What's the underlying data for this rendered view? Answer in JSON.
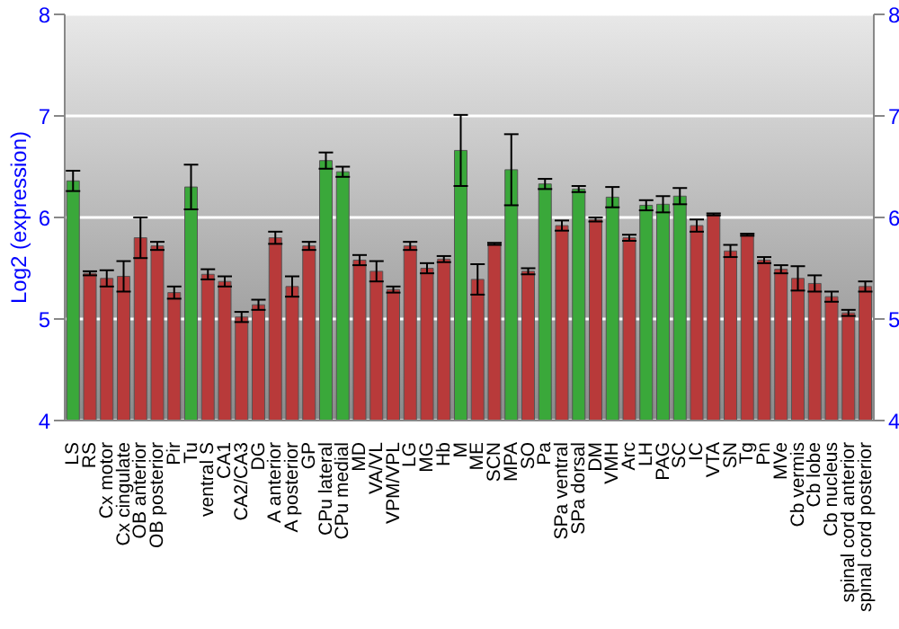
{
  "chart_data": {
    "type": "bar",
    "ylabel": "Log2 (expression)",
    "categories": [
      "LS",
      "RS",
      "Cx motor",
      "Cx cingulate",
      "OB anterior",
      "OB posterior",
      "Pir",
      "Tu",
      "ventral S",
      "CA1",
      "CA2/CA3",
      "DG",
      "A anterior",
      "A posterior",
      "GP",
      "CPu lateral",
      "CPu medial",
      "MD",
      "VA/VL",
      "VPM/VPL",
      "LG",
      "MG",
      "Hb",
      "M",
      "ME",
      "SCN",
      "MPA",
      "SO",
      "Pa",
      "SPa ventral",
      "SPa dorsal",
      "DM",
      "VMH",
      "Arc",
      "LH",
      "PAG",
      "SC",
      "IC",
      "VTA",
      "SN",
      "Tg",
      "Pn",
      "MVe",
      "Cb vermis",
      "Cb lobe",
      "Cb nucleus",
      "spinal cord anterior",
      "spinal cord posterior"
    ],
    "values": [
      6.36,
      5.45,
      5.4,
      5.42,
      5.8,
      5.72,
      5.26,
      6.3,
      5.44,
      5.37,
      5.02,
      5.14,
      5.8,
      5.32,
      5.72,
      6.56,
      6.45,
      5.58,
      5.47,
      5.29,
      5.72,
      5.5,
      5.59,
      6.66,
      5.39,
      5.74,
      6.47,
      5.47,
      6.33,
      5.92,
      6.28,
      5.98,
      6.2,
      5.8,
      6.12,
      6.13,
      6.21,
      5.92,
      6.03,
      5.67,
      5.83,
      5.58,
      5.49,
      5.4,
      5.35,
      5.22,
      5.06,
      5.32
    ],
    "errors": [
      0.1,
      0.02,
      0.08,
      0.15,
      0.2,
      0.04,
      0.06,
      0.22,
      0.05,
      0.05,
      0.05,
      0.05,
      0.06,
      0.1,
      0.04,
      0.08,
      0.05,
      0.05,
      0.1,
      0.03,
      0.04,
      0.05,
      0.03,
      0.35,
      0.15,
      0.01,
      0.35,
      0.03,
      0.05,
      0.05,
      0.03,
      0.02,
      0.1,
      0.03,
      0.05,
      0.08,
      0.08,
      0.06,
      0.01,
      0.06,
      0.01,
      0.03,
      0.04,
      0.12,
      0.08,
      0.05,
      0.03,
      0.05
    ],
    "colors": [
      "#3aa83a",
      "#b83a3a",
      "#b83a3a",
      "#b83a3a",
      "#b83a3a",
      "#b83a3a",
      "#b83a3a",
      "#3aa83a",
      "#b83a3a",
      "#b83a3a",
      "#b83a3a",
      "#b83a3a",
      "#b83a3a",
      "#b83a3a",
      "#b83a3a",
      "#3aa83a",
      "#3aa83a",
      "#b83a3a",
      "#b83a3a",
      "#b83a3a",
      "#b83a3a",
      "#b83a3a",
      "#b83a3a",
      "#3aa83a",
      "#b83a3a",
      "#b83a3a",
      "#3aa83a",
      "#b83a3a",
      "#3aa83a",
      "#b83a3a",
      "#3aa83a",
      "#b83a3a",
      "#3aa83a",
      "#b83a3a",
      "#3aa83a",
      "#3aa83a",
      "#3aa83a",
      "#b83a3a",
      "#b83a3a",
      "#b83a3a",
      "#b83a3a",
      "#b83a3a",
      "#b83a3a",
      "#b83a3a",
      "#b83a3a",
      "#b83a3a",
      "#b83a3a",
      "#b83a3a"
    ],
    "ylim": [
      4,
      8
    ],
    "yticks": [
      4,
      5,
      6,
      7,
      8
    ],
    "y2lim": [
      4,
      8
    ],
    "y2ticks": [
      4,
      5,
      6,
      7,
      8
    ],
    "grid": "y"
  }
}
